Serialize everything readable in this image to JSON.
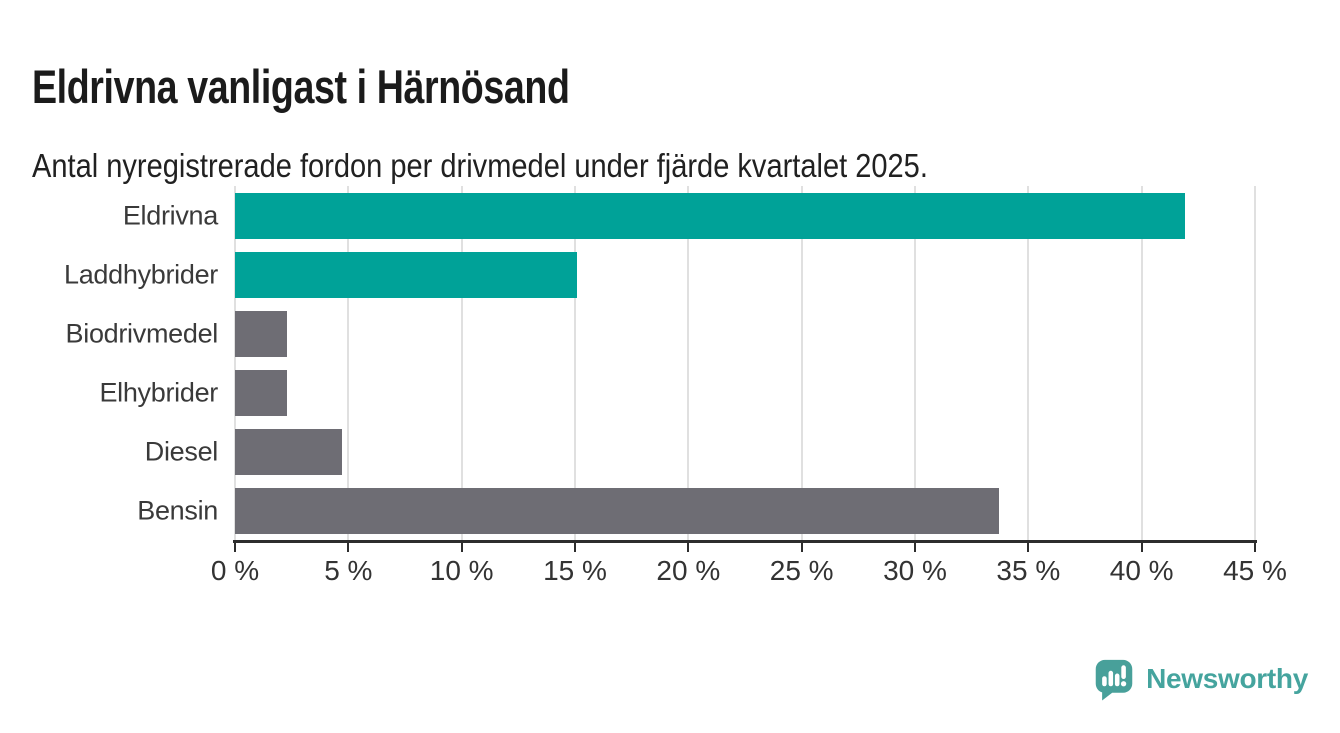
{
  "header": {
    "title": "Eldrivna vanligast i Härnösand",
    "subtitle": "Antal nyregistrerade fordon per drivmedel under fjärde kvartalet 2025."
  },
  "chart_data": {
    "type": "bar",
    "orientation": "horizontal",
    "title": "Eldrivna vanligast i Härnösand",
    "subtitle": "Antal nyregistrerade fordon per drivmedel under fjärde kvartalet 2025.",
    "categories": [
      "Eldrivna",
      "Laddhybrider",
      "Biodrivmedel",
      "Elhybrider",
      "Diesel",
      "Bensin"
    ],
    "values": [
      41.9,
      15.1,
      2.3,
      2.3,
      4.7,
      33.7
    ],
    "unit": "%",
    "bar_colors": [
      "#00a298",
      "#00a298",
      "#6e6d74",
      "#6e6d74",
      "#6e6d74",
      "#6e6d74"
    ],
    "xlabel": "",
    "ylabel": "",
    "xlim": [
      0,
      45
    ],
    "x_ticks": [
      0,
      5,
      10,
      15,
      20,
      25,
      30,
      35,
      40,
      45
    ],
    "x_tick_labels": [
      "0 %",
      "5 %",
      "10 %",
      "15 %",
      "20 %",
      "25 %",
      "30 %",
      "35 %",
      "40 %",
      "45 %"
    ],
    "grid": "vertical",
    "legend": "none"
  },
  "footer": {
    "brand": "Newsworthy"
  },
  "colors": {
    "accent_teal": "#00a298",
    "neutral_gray": "#6e6d74",
    "gridline": "#e0e0e0",
    "axis": "#2d2d2d",
    "logo_teal": "#48a09a",
    "brand_text": "#45a49e"
  }
}
